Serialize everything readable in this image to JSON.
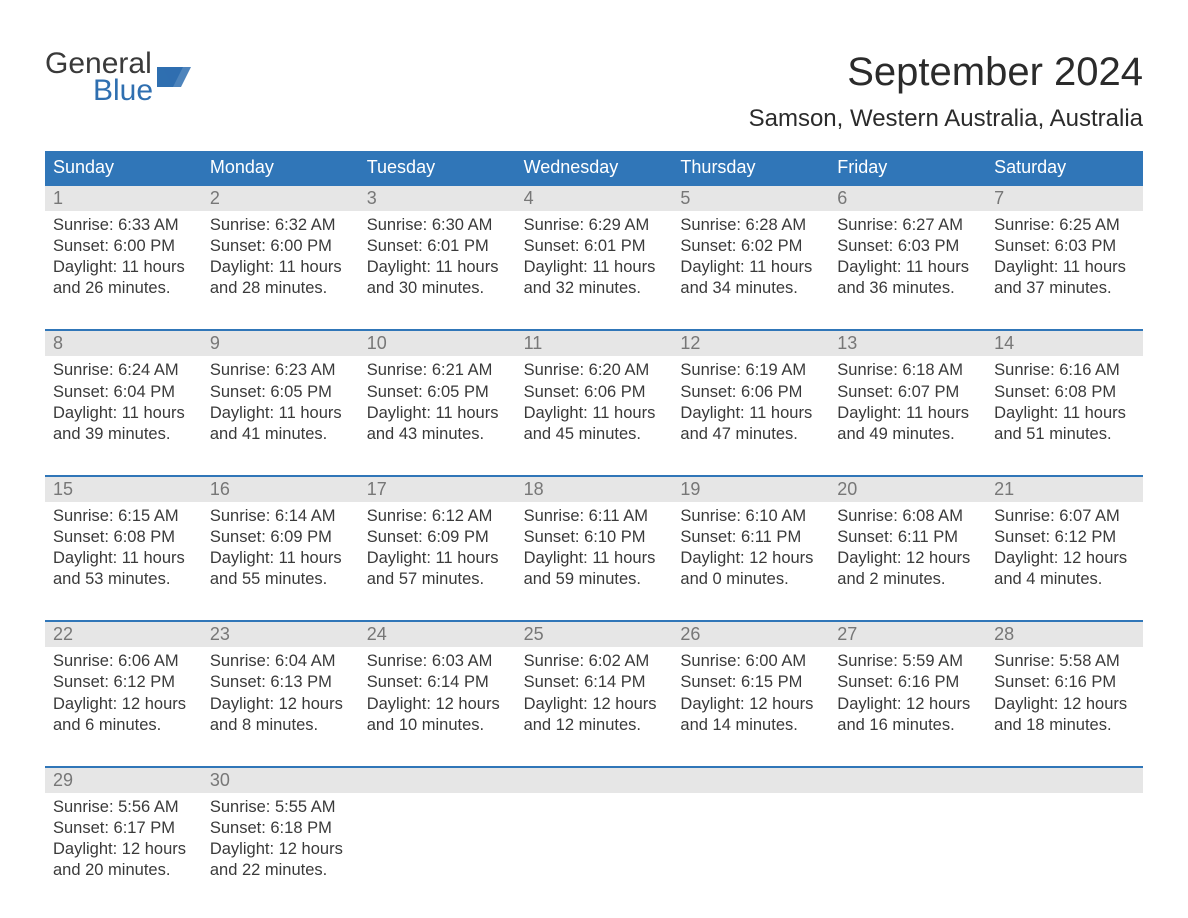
{
  "logo": {
    "line1": "General",
    "line2": "Blue",
    "flag_color": "#2f6fb0",
    "text_color_general": "#3a3a3a",
    "text_color_blue": "#2f6fb0"
  },
  "header": {
    "month_title": "September 2024",
    "location": "Samson, Western Australia, Australia"
  },
  "style": {
    "background_color": "#ffffff",
    "header_band_color": "#3076b8",
    "header_band_text_color": "#ffffff",
    "daynum_band_color": "#e6e6e6",
    "daynum_text_color": "#777777",
    "body_text_color": "#3a3a3a",
    "week_rule_color": "#3076b8",
    "font_family": "Arial",
    "weekday_fontsize": 18,
    "daynum_fontsize": 18,
    "body_fontsize": 16.5,
    "title_fontsize": 40,
    "location_fontsize": 24
  },
  "weekdays": [
    "Sunday",
    "Monday",
    "Tuesday",
    "Wednesday",
    "Thursday",
    "Friday",
    "Saturday"
  ],
  "days": [
    {
      "n": "1",
      "sunrise": "Sunrise: 6:33 AM",
      "sunset": "Sunset: 6:00 PM",
      "daylight1": "Daylight: 11 hours",
      "daylight2": "and 26 minutes."
    },
    {
      "n": "2",
      "sunrise": "Sunrise: 6:32 AM",
      "sunset": "Sunset: 6:00 PM",
      "daylight1": "Daylight: 11 hours",
      "daylight2": "and 28 minutes."
    },
    {
      "n": "3",
      "sunrise": "Sunrise: 6:30 AM",
      "sunset": "Sunset: 6:01 PM",
      "daylight1": "Daylight: 11 hours",
      "daylight2": "and 30 minutes."
    },
    {
      "n": "4",
      "sunrise": "Sunrise: 6:29 AM",
      "sunset": "Sunset: 6:01 PM",
      "daylight1": "Daylight: 11 hours",
      "daylight2": "and 32 minutes."
    },
    {
      "n": "5",
      "sunrise": "Sunrise: 6:28 AM",
      "sunset": "Sunset: 6:02 PM",
      "daylight1": "Daylight: 11 hours",
      "daylight2": "and 34 minutes."
    },
    {
      "n": "6",
      "sunrise": "Sunrise: 6:27 AM",
      "sunset": "Sunset: 6:03 PM",
      "daylight1": "Daylight: 11 hours",
      "daylight2": "and 36 minutes."
    },
    {
      "n": "7",
      "sunrise": "Sunrise: 6:25 AM",
      "sunset": "Sunset: 6:03 PM",
      "daylight1": "Daylight: 11 hours",
      "daylight2": "and 37 minutes."
    },
    {
      "n": "8",
      "sunrise": "Sunrise: 6:24 AM",
      "sunset": "Sunset: 6:04 PM",
      "daylight1": "Daylight: 11 hours",
      "daylight2": "and 39 minutes."
    },
    {
      "n": "9",
      "sunrise": "Sunrise: 6:23 AM",
      "sunset": "Sunset: 6:05 PM",
      "daylight1": "Daylight: 11 hours",
      "daylight2": "and 41 minutes."
    },
    {
      "n": "10",
      "sunrise": "Sunrise: 6:21 AM",
      "sunset": "Sunset: 6:05 PM",
      "daylight1": "Daylight: 11 hours",
      "daylight2": "and 43 minutes."
    },
    {
      "n": "11",
      "sunrise": "Sunrise: 6:20 AM",
      "sunset": "Sunset: 6:06 PM",
      "daylight1": "Daylight: 11 hours",
      "daylight2": "and 45 minutes."
    },
    {
      "n": "12",
      "sunrise": "Sunrise: 6:19 AM",
      "sunset": "Sunset: 6:06 PM",
      "daylight1": "Daylight: 11 hours",
      "daylight2": "and 47 minutes."
    },
    {
      "n": "13",
      "sunrise": "Sunrise: 6:18 AM",
      "sunset": "Sunset: 6:07 PM",
      "daylight1": "Daylight: 11 hours",
      "daylight2": "and 49 minutes."
    },
    {
      "n": "14",
      "sunrise": "Sunrise: 6:16 AM",
      "sunset": "Sunset: 6:08 PM",
      "daylight1": "Daylight: 11 hours",
      "daylight2": "and 51 minutes."
    },
    {
      "n": "15",
      "sunrise": "Sunrise: 6:15 AM",
      "sunset": "Sunset: 6:08 PM",
      "daylight1": "Daylight: 11 hours",
      "daylight2": "and 53 minutes."
    },
    {
      "n": "16",
      "sunrise": "Sunrise: 6:14 AM",
      "sunset": "Sunset: 6:09 PM",
      "daylight1": "Daylight: 11 hours",
      "daylight2": "and 55 minutes."
    },
    {
      "n": "17",
      "sunrise": "Sunrise: 6:12 AM",
      "sunset": "Sunset: 6:09 PM",
      "daylight1": "Daylight: 11 hours",
      "daylight2": "and 57 minutes."
    },
    {
      "n": "18",
      "sunrise": "Sunrise: 6:11 AM",
      "sunset": "Sunset: 6:10 PM",
      "daylight1": "Daylight: 11 hours",
      "daylight2": "and 59 minutes."
    },
    {
      "n": "19",
      "sunrise": "Sunrise: 6:10 AM",
      "sunset": "Sunset: 6:11 PM",
      "daylight1": "Daylight: 12 hours",
      "daylight2": "and 0 minutes."
    },
    {
      "n": "20",
      "sunrise": "Sunrise: 6:08 AM",
      "sunset": "Sunset: 6:11 PM",
      "daylight1": "Daylight: 12 hours",
      "daylight2": "and 2 minutes."
    },
    {
      "n": "21",
      "sunrise": "Sunrise: 6:07 AM",
      "sunset": "Sunset: 6:12 PM",
      "daylight1": "Daylight: 12 hours",
      "daylight2": "and 4 minutes."
    },
    {
      "n": "22",
      "sunrise": "Sunrise: 6:06 AM",
      "sunset": "Sunset: 6:12 PM",
      "daylight1": "Daylight: 12 hours",
      "daylight2": "and 6 minutes."
    },
    {
      "n": "23",
      "sunrise": "Sunrise: 6:04 AM",
      "sunset": "Sunset: 6:13 PM",
      "daylight1": "Daylight: 12 hours",
      "daylight2": "and 8 minutes."
    },
    {
      "n": "24",
      "sunrise": "Sunrise: 6:03 AM",
      "sunset": "Sunset: 6:14 PM",
      "daylight1": "Daylight: 12 hours",
      "daylight2": "and 10 minutes."
    },
    {
      "n": "25",
      "sunrise": "Sunrise: 6:02 AM",
      "sunset": "Sunset: 6:14 PM",
      "daylight1": "Daylight: 12 hours",
      "daylight2": "and 12 minutes."
    },
    {
      "n": "26",
      "sunrise": "Sunrise: 6:00 AM",
      "sunset": "Sunset: 6:15 PM",
      "daylight1": "Daylight: 12 hours",
      "daylight2": "and 14 minutes."
    },
    {
      "n": "27",
      "sunrise": "Sunrise: 5:59 AM",
      "sunset": "Sunset: 6:16 PM",
      "daylight1": "Daylight: 12 hours",
      "daylight2": "and 16 minutes."
    },
    {
      "n": "28",
      "sunrise": "Sunrise: 5:58 AM",
      "sunset": "Sunset: 6:16 PM",
      "daylight1": "Daylight: 12 hours",
      "daylight2": "and 18 minutes."
    },
    {
      "n": "29",
      "sunrise": "Sunrise: 5:56 AM",
      "sunset": "Sunset: 6:17 PM",
      "daylight1": "Daylight: 12 hours",
      "daylight2": "and 20 minutes."
    },
    {
      "n": "30",
      "sunrise": "Sunrise: 5:55 AM",
      "sunset": "Sunset: 6:18 PM",
      "daylight1": "Daylight: 12 hours",
      "daylight2": "and 22 minutes."
    }
  ],
  "layout": {
    "start_weekday_index": 0,
    "weeks": 5,
    "columns": 7
  }
}
